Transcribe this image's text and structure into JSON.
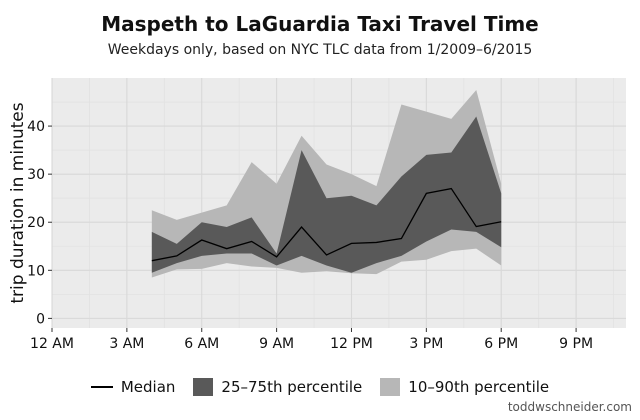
{
  "chart_data": {
    "type": "area",
    "title": "Maspeth to LaGuardia Taxi Travel Time",
    "subtitle": "Weekdays only, based on NYC TLC data from 1/2009–6/2015",
    "xlabel": "",
    "ylabel": "trip duration in minutes",
    "xlim": [
      0,
      23
    ],
    "ylim": [
      -2,
      50
    ],
    "x_ticks": [
      0,
      3,
      6,
      9,
      12,
      15,
      18,
      21
    ],
    "x_tick_labels": [
      "12 AM",
      "3 AM",
      "6 AM",
      "9 AM",
      "12 PM",
      "3 PM",
      "6 PM",
      "9 PM"
    ],
    "y_ticks": [
      0,
      10,
      20,
      30,
      40
    ],
    "y_tick_labels": [
      "0",
      "10",
      "20",
      "30",
      "40"
    ],
    "grid": true,
    "legend_position": "bottom",
    "x": [
      4,
      5,
      6,
      7,
      8,
      9,
      10,
      11,
      12,
      13,
      14,
      15,
      16,
      17,
      18
    ],
    "series": [
      {
        "name": "Median",
        "values": [
          12,
          13,
          16.3,
          14.5,
          16,
          12.8,
          19,
          13.2,
          15.6,
          15.8,
          16.6,
          26,
          27,
          19.1,
          20.1
        ]
      },
      {
        "name": "25–75th percentile",
        "lower": [
          9.5,
          11.5,
          13,
          13.5,
          13.5,
          11,
          13,
          11,
          9.5,
          11.5,
          13,
          16,
          18.5,
          18,
          14.8
        ],
        "upper": [
          18,
          15.5,
          20,
          19,
          21,
          13.5,
          35,
          25,
          25.5,
          23.5,
          29.5,
          34,
          34.5,
          42,
          26
        ]
      },
      {
        "name": "10–90th percentile",
        "lower": [
          8.5,
          10.2,
          10.3,
          11.5,
          10.8,
          10.5,
          9.5,
          9.8,
          9.4,
          9.2,
          11.8,
          12.2,
          14,
          14.5,
          11
        ],
        "upper": [
          22.5,
          20.5,
          22,
          23.5,
          32.5,
          28,
          38,
          32,
          30,
          27.5,
          44.5,
          43,
          41.5,
          47.5,
          28
        ]
      }
    ],
    "colors": {
      "panel": "#ebebeb",
      "grid_major": "#d8d8d8",
      "grid_minor": "#e2e2e2",
      "band_iqr": "#595959",
      "band_outer": "#b7b7b7",
      "median": "#000000",
      "text": "#111111"
    }
  },
  "credit": "toddwschneider.com"
}
